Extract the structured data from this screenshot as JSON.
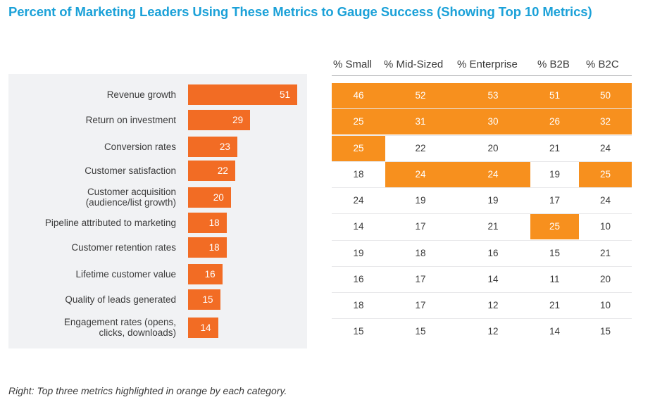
{
  "chart_data": [
    {
      "type": "bar",
      "orientation": "horizontal",
      "title": "Percent of Marketing Leaders Using These Metrics to Gauge Success (Showing Top 10 Metrics)",
      "xlabel": "",
      "ylabel": "",
      "categories": [
        "Revenue growth",
        "Return on investment",
        "Conversion rates",
        "Customer satisfaction",
        "Customer acquisition (audience/list growth)",
        "Pipeline attributed to marketing",
        "Customer retention rates",
        "Lifetime customer value",
        "Quality of leads generated",
        "Engagement rates (opens, clicks, downloads)"
      ],
      "label_lines": [
        [
          "Revenue growth"
        ],
        [
          "Return on investment"
        ],
        [
          "Conversion rates"
        ],
        [
          "Customer satisfaction"
        ],
        [
          "Customer acquisition",
          "(audience/list growth)"
        ],
        [
          "Pipeline attributed to marketing"
        ],
        [
          "Customer retention rates"
        ],
        [
          "Lifetime customer value"
        ],
        [
          "Quality of leads generated"
        ],
        [
          "Engagement rates (opens,",
          "clicks, downloads)"
        ]
      ],
      "values": [
        51,
        29,
        23,
        22,
        20,
        18,
        18,
        16,
        15,
        14
      ],
      "xlim": [
        0,
        51
      ],
      "grid": false,
      "bar_color": "#f26c24"
    },
    {
      "type": "table",
      "columns": [
        "% Small",
        "% Mid-Sized",
        "% Enterprise",
        "% B2B",
        "% B2C"
      ],
      "rows": [
        [
          46,
          52,
          53,
          51,
          50
        ],
        [
          25,
          31,
          30,
          26,
          32
        ],
        [
          25,
          22,
          20,
          21,
          24
        ],
        [
          18,
          24,
          24,
          19,
          25
        ],
        [
          24,
          19,
          19,
          17,
          24
        ],
        [
          14,
          17,
          21,
          25,
          10
        ],
        [
          19,
          18,
          16,
          15,
          21
        ],
        [
          16,
          17,
          14,
          11,
          20
        ],
        [
          18,
          17,
          12,
          21,
          10
        ],
        [
          15,
          15,
          12,
          14,
          15
        ]
      ],
      "highlighted": [
        [
          true,
          true,
          true,
          true,
          true
        ],
        [
          true,
          true,
          true,
          true,
          true
        ],
        [
          true,
          false,
          false,
          false,
          false
        ],
        [
          false,
          true,
          true,
          false,
          true
        ],
        [
          false,
          false,
          false,
          false,
          false
        ],
        [
          false,
          false,
          false,
          true,
          false
        ],
        [
          false,
          false,
          false,
          false,
          false
        ],
        [
          false,
          false,
          false,
          false,
          false
        ],
        [
          false,
          false,
          false,
          false,
          false
        ],
        [
          false,
          false,
          false,
          false,
          false
        ]
      ],
      "highlight_color": "#f7901e"
    }
  ],
  "caption": "Right: Top three metrics highlighted in orange by each category.",
  "colors": {
    "title": "#1ba1d8",
    "bar": "#f26c24",
    "highlight": "#f7901e"
  }
}
